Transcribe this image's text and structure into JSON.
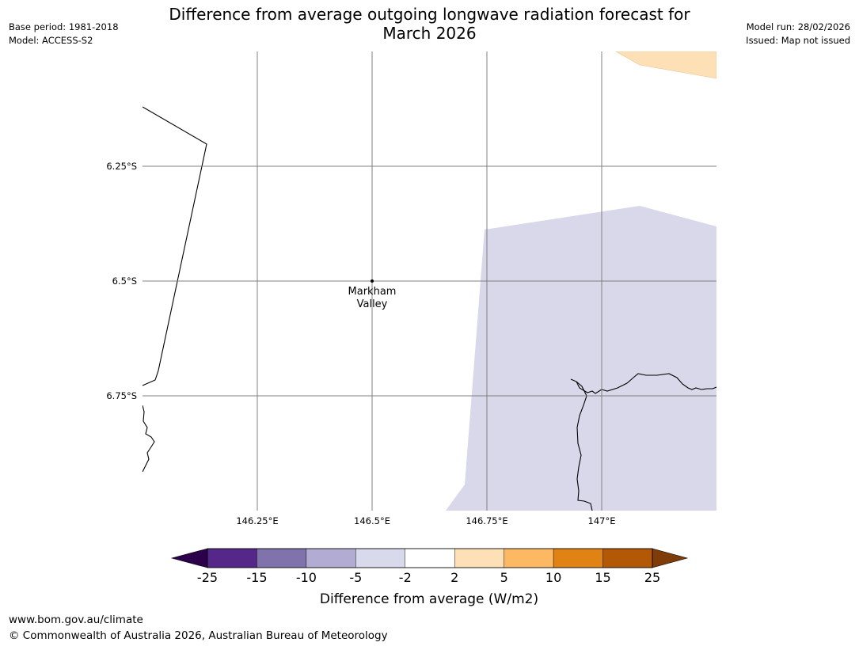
{
  "title": {
    "line1": "Difference from average outgoing longwave radiation forecast for",
    "line2": "March 2026"
  },
  "meta": {
    "base_period": "Base period: 1981-2018",
    "model": "Model: ACCESS-S2",
    "model_run": "Model run: 28/02/2026",
    "issued": "Issued: Map not issued"
  },
  "map": {
    "lon_range": [
      146.0,
      147.25
    ],
    "lat_range": [
      -7.0,
      -6.0
    ],
    "lat_gridlines": [
      {
        "value": -6.25,
        "label": "6.25°S"
      },
      {
        "value": -6.5,
        "label": "6.5°S"
      },
      {
        "value": -6.75,
        "label": "6.75°S"
      }
    ],
    "lon_gridlines": [
      {
        "value": 146.25,
        "label": "146.25°E"
      },
      {
        "value": 146.5,
        "label": "146.5°E"
      },
      {
        "value": 146.75,
        "label": "146.75°E"
      },
      {
        "value": 147.0,
        "label": "147°E"
      }
    ],
    "location": {
      "name_line1": "Markham",
      "name_line2": "Valley",
      "lon": 146.5,
      "lat": -6.5
    },
    "colors": {
      "light_purple_fill": "#d8d8ea",
      "light_orange_fill": "#fee0b6",
      "coast": "#000000",
      "grid": "#808080"
    }
  },
  "colorbar": {
    "title": "Difference from average (W/m2)",
    "tick_labels": [
      "-25",
      "-15",
      "-10",
      "-5",
      "-2",
      "2",
      "5",
      "10",
      "15",
      "25"
    ],
    "under_color": "#2d004b",
    "over_color": "#7f3b08",
    "colors": [
      "#542788",
      "#8073ac",
      "#b2abd2",
      "#d8daeb",
      "#ffffff",
      "#fee0b6",
      "#fdb863",
      "#e08214",
      "#b35806"
    ]
  },
  "footer": {
    "url": "www.bom.gov.au/climate",
    "copyright": "© Commonwealth of Australia 2026, Australian Bureau of Meteorology"
  }
}
